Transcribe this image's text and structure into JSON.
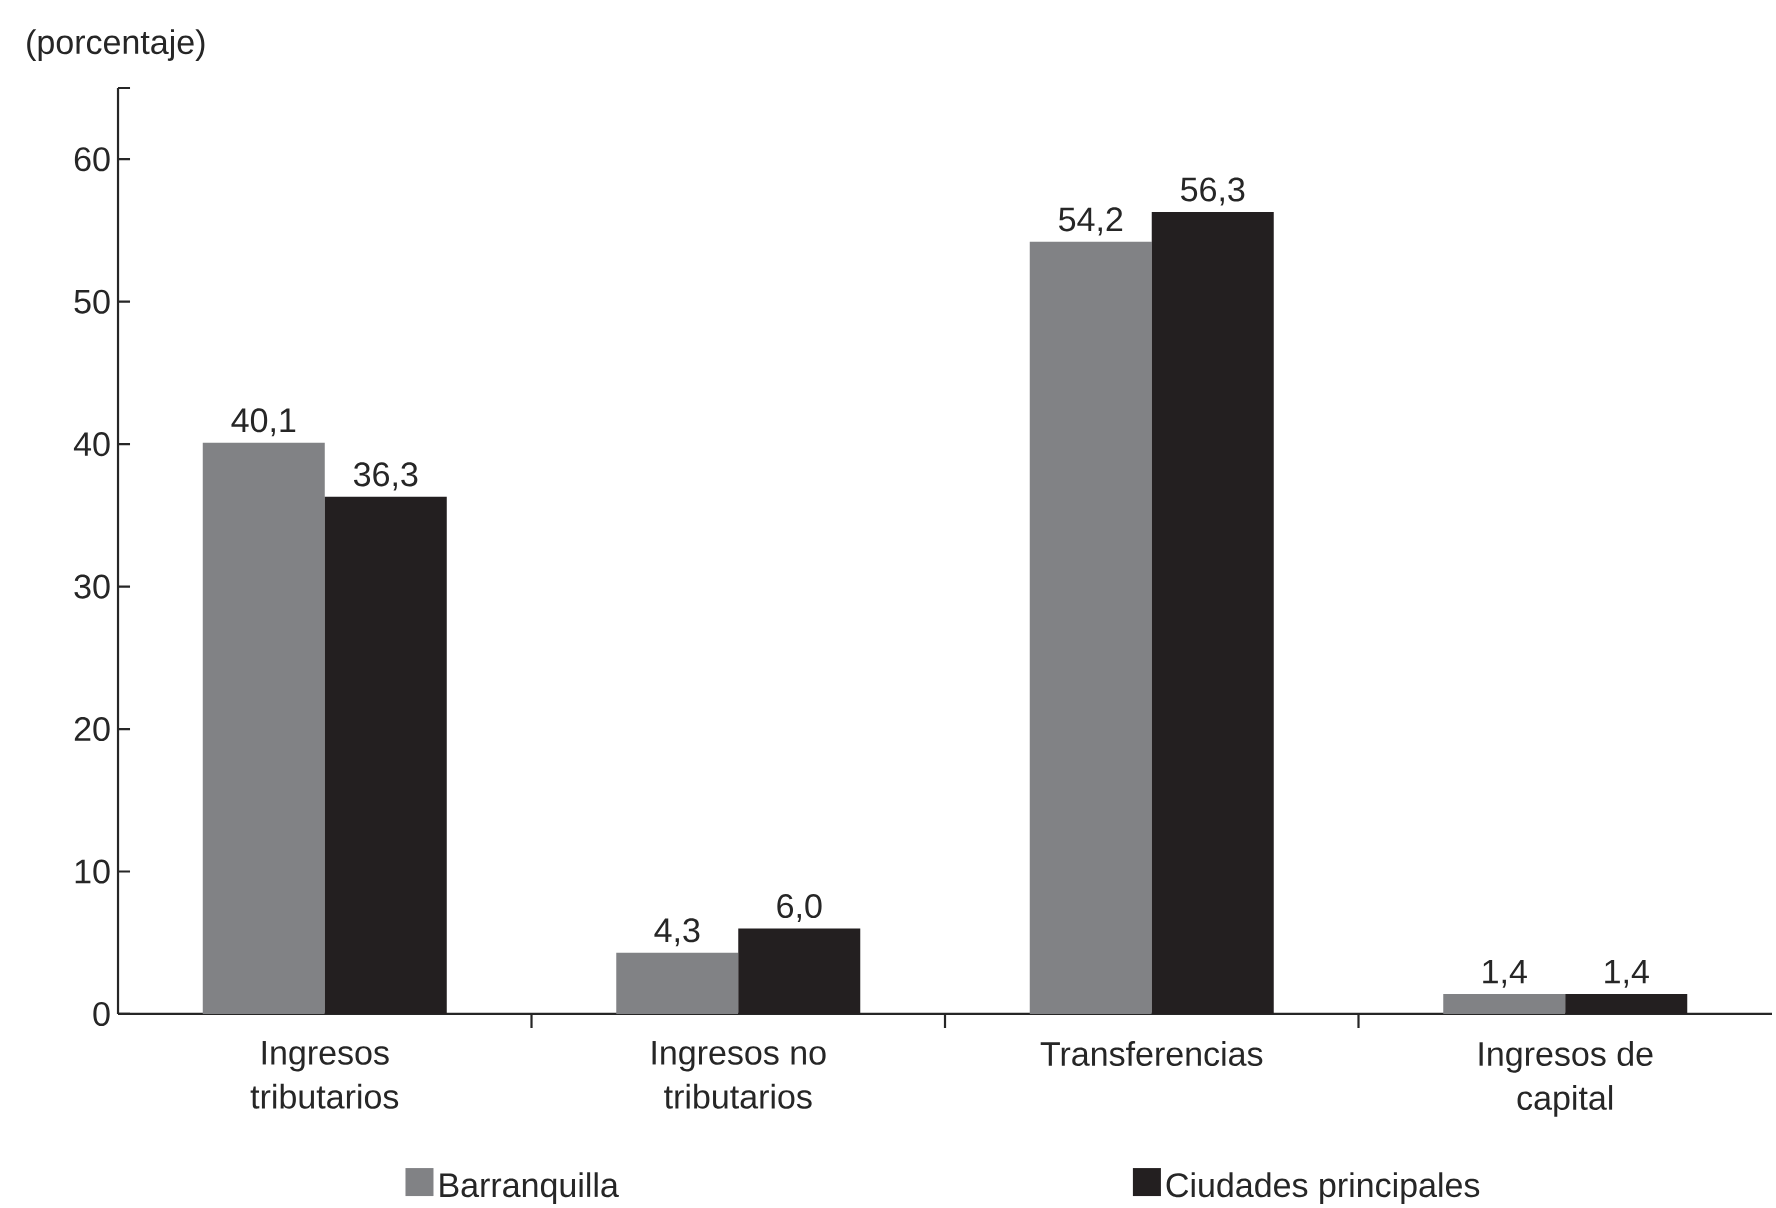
{
  "chart_data": {
    "type": "bar",
    "ylabel": "(porcentaje)",
    "categories": [
      "Ingresos tributarios",
      "Ingresos no tributarios",
      "Transferencias",
      "Ingresos de capital"
    ],
    "series": [
      {
        "name": "Barranquilla",
        "color": "#818285",
        "values": [
          40.1,
          4.3,
          54.2,
          1.4
        ],
        "value_labels": [
          "40,1",
          "4,3",
          "54,2",
          "1,4"
        ]
      },
      {
        "name": "Ciudades principales",
        "color": "#231f20",
        "values": [
          36.3,
          6.0,
          56.3,
          1.4
        ],
        "value_labels": [
          "36,3",
          "6,0",
          "56,3",
          "1,4"
        ]
      }
    ],
    "ylim": [
      0,
      65
    ],
    "yticks": [
      0,
      10,
      20,
      30,
      40,
      50,
      60,
      {
        "value": 65,
        "label": null
      }
    ],
    "legend": "bottom"
  }
}
